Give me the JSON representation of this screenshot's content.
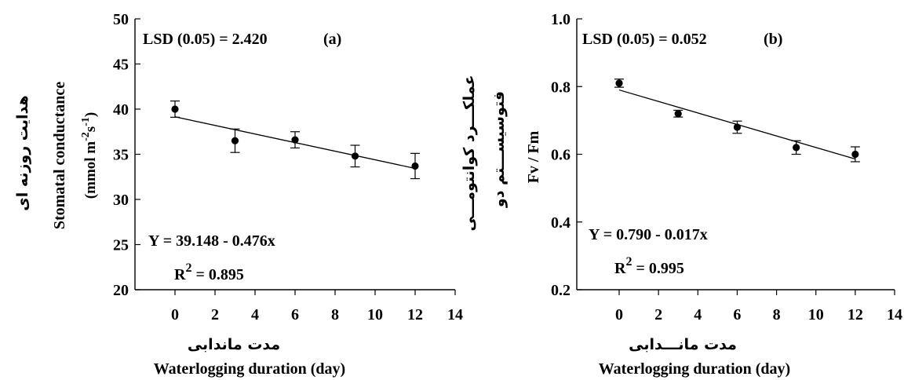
{
  "chart_data": [
    {
      "type": "scatter",
      "panel_label": "(a)",
      "lsd": "LSD (0.05) = 2.420",
      "equation": "Y = 39.148 - 0.476x",
      "r2_prefix": "R",
      "r2_exp": "2",
      "r2_value": " = 0.895",
      "ylabel_fa": "هدایت روزنه ای",
      "ylabel_en_main": "Stomatal conductance",
      "ylabel_en_units": "(mmol m-2s-1)",
      "xlabel_fa": "مدت ماندابی",
      "xlabel_en": "Waterlogging duration (day)",
      "xlim": [
        -2,
        14
      ],
      "ylim": [
        20,
        50
      ],
      "xticks": [
        "0",
        "2",
        "4",
        "6",
        "8",
        "10",
        "12",
        "14"
      ],
      "yticks": [
        "20",
        "25",
        "30",
        "35",
        "40",
        "45",
        "50"
      ],
      "x": [
        0,
        3,
        6,
        9,
        12
      ],
      "y": [
        40.0,
        36.5,
        36.6,
        34.8,
        33.7
      ],
      "err": [
        0.9,
        1.3,
        0.9,
        1.2,
        1.4
      ],
      "fit": {
        "intercept": 39.148,
        "slope": -0.476
      }
    },
    {
      "type": "scatter",
      "panel_label": "(b)",
      "lsd": "LSD (0.05) = 0.052",
      "equation": "Y = 0.790 - 0.017x",
      "r2_prefix": "R",
      "r2_exp": "2",
      "r2_value": " = 0.995",
      "ylabel_fa_1": "عملکـــرد کوانتومـــی",
      "ylabel_fa_2": "فتوسیســـتم دو",
      "ylabel_en": "Fv / Fm",
      "xlabel_fa": "مدت مانـــدابی",
      "xlabel_en": "Waterlogging duration (day)",
      "xlim": [
        -2,
        14
      ],
      "ylim": [
        0.2,
        1.0
      ],
      "xticks": [
        "0",
        "2",
        "4",
        "6",
        "8",
        "10",
        "12",
        "14"
      ],
      "yticks": [
        "0.2",
        "0.4",
        "0.6",
        "0.8",
        "1.0"
      ],
      "x": [
        0,
        3,
        6,
        9,
        12
      ],
      "y": [
        0.81,
        0.72,
        0.68,
        0.62,
        0.6
      ],
      "err": [
        0.012,
        0.01,
        0.018,
        0.02,
        0.022
      ],
      "fit": {
        "intercept": 0.79,
        "slope": -0.017
      }
    }
  ]
}
